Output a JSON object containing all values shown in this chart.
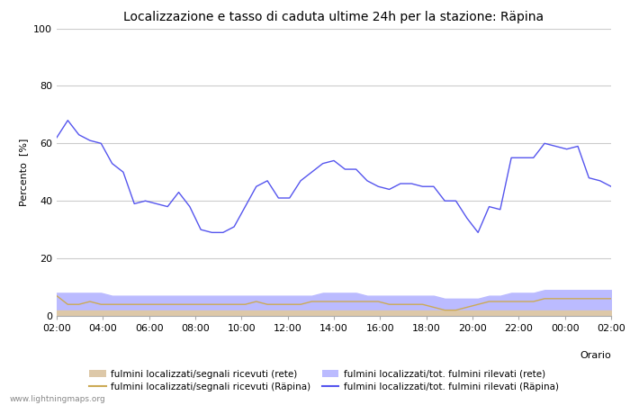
{
  "title": "Localizzazione e tasso di caduta ultime 24h per la stazione: Räpina",
  "xlabel": "Orario",
  "ylabel": "Percento  [%]",
  "ylim": [
    0,
    100
  ],
  "yticks": [
    0,
    20,
    40,
    60,
    80,
    100
  ],
  "x_labels": [
    "02:00",
    "04:00",
    "06:00",
    "08:00",
    "10:00",
    "12:00",
    "14:00",
    "16:00",
    "18:00",
    "20:00",
    "22:00",
    "00:00",
    "02:00"
  ],
  "watermark": "www.lightningmaps.org",
  "blue_line": [
    62,
    68,
    63,
    61,
    60,
    53,
    50,
    39,
    40,
    39,
    38,
    43,
    38,
    30,
    29,
    29,
    31,
    38,
    45,
    47,
    41,
    41,
    47,
    50,
    53,
    54,
    51,
    51,
    47,
    45,
    44,
    46,
    46,
    45,
    45,
    40,
    40,
    34,
    29,
    38,
    37,
    55,
    55,
    55,
    60,
    59,
    58,
    59,
    48,
    47,
    45
  ],
  "orange_line": [
    7,
    4,
    4,
    5,
    4,
    4,
    4,
    4,
    4,
    4,
    4,
    4,
    4,
    4,
    4,
    4,
    4,
    4,
    5,
    4,
    4,
    4,
    4,
    5,
    5,
    5,
    5,
    5,
    5,
    5,
    4,
    4,
    4,
    4,
    3,
    2,
    2,
    3,
    4,
    5,
    5,
    5,
    5,
    5,
    6,
    6,
    6,
    6,
    6,
    6,
    6
  ],
  "blue_fill": [
    8,
    8,
    8,
    8,
    8,
    7,
    7,
    7,
    7,
    7,
    7,
    7,
    7,
    7,
    7,
    7,
    7,
    7,
    7,
    7,
    7,
    7,
    7,
    7,
    8,
    8,
    8,
    8,
    7,
    7,
    7,
    7,
    7,
    7,
    7,
    6,
    6,
    6,
    6,
    7,
    7,
    8,
    8,
    8,
    9,
    9,
    9,
    9,
    9,
    9,
    9
  ],
  "peach_fill": [
    2,
    2,
    2,
    2,
    2,
    2,
    2,
    2,
    2,
    2,
    2,
    2,
    2,
    2,
    2,
    2,
    2,
    2,
    2,
    2,
    2,
    2,
    2,
    2,
    2,
    2,
    2,
    2,
    2,
    2,
    2,
    2,
    2,
    2,
    2,
    2,
    2,
    2,
    2,
    2,
    2,
    2,
    2,
    2,
    2,
    2,
    2,
    2,
    2,
    2,
    2
  ],
  "blue_line_color": "#5555ee",
  "orange_line_color": "#ccaa55",
  "blue_fill_color": "#bbbbff",
  "peach_fill_color": "#ddc8a8",
  "background_color": "#ffffff",
  "grid_color": "#cccccc",
  "axis_bg_color": "#ffffff",
  "legend_labels": [
    "fulmini localizzati/segnali ricevuti (rete)",
    "fulmini localizzati/segnali ricevuti (Räpina)",
    "fulmini localizzati/tot. fulmini rilevati (rete)",
    "fulmini localizzati/tot. fulmini rilevati (Räpina)"
  ],
  "title_fontsize": 10,
  "legend_fontsize": 7.5,
  "tick_fontsize": 8
}
